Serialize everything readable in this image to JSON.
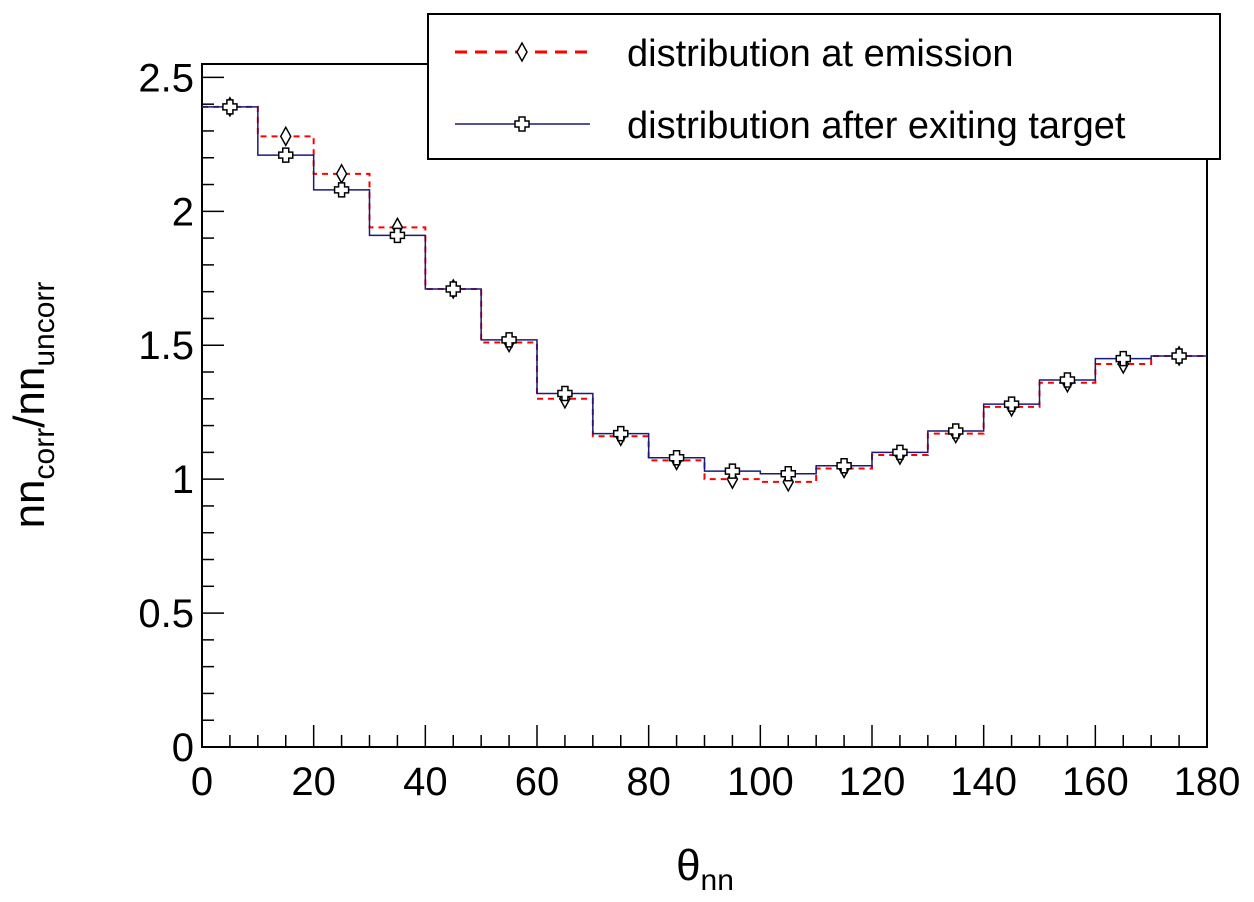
{
  "chart_data": {
    "type": "line",
    "title": "",
    "xlabel": {
      "main": "θ",
      "sub": "nn"
    },
    "ylabel": {
      "p1": "nn",
      "s1": "corr",
      "p2": "/nn",
      "s2": "uncorr"
    },
    "xlim": [
      0,
      180
    ],
    "ylim": [
      0,
      2.55
    ],
    "x_ticks": [
      0,
      20,
      40,
      60,
      80,
      100,
      120,
      140,
      160,
      180
    ],
    "y_ticks": [
      0,
      0.5,
      1,
      1.5,
      2,
      2.5
    ],
    "y_tick_labels": [
      "0",
      "0.5",
      "1",
      "1.5",
      "2",
      "2.5"
    ],
    "x_tick_labels": [
      "0",
      "20",
      "40",
      "60",
      "80",
      "100",
      "120",
      "140",
      "160",
      "180"
    ],
    "bin_edges": [
      0,
      10,
      20,
      30,
      40,
      50,
      60,
      70,
      80,
      90,
      100,
      110,
      120,
      130,
      140,
      150,
      160,
      170,
      180
    ],
    "bin_centers": [
      5,
      15,
      25,
      35,
      45,
      55,
      65,
      75,
      85,
      95,
      105,
      115,
      125,
      135,
      145,
      155,
      165,
      175
    ],
    "grid": false,
    "legend_position": "top-right",
    "series": [
      {
        "name": "distribution at emission",
        "style": "dashed-step",
        "marker": "open-diamond",
        "color": "#ff0000",
        "values": [
          2.39,
          2.28,
          2.14,
          1.94,
          1.71,
          1.51,
          1.3,
          1.16,
          1.07,
          1.0,
          0.99,
          1.04,
          1.09,
          1.17,
          1.27,
          1.36,
          1.43,
          1.46
        ]
      },
      {
        "name": "distribution after exiting target",
        "style": "solid-step",
        "marker": "open-cross",
        "color": "#1a1a7a",
        "values": [
          2.39,
          2.21,
          2.08,
          1.91,
          1.71,
          1.52,
          1.32,
          1.17,
          1.08,
          1.03,
          1.02,
          1.05,
          1.1,
          1.18,
          1.28,
          1.37,
          1.45,
          1.46
        ]
      }
    ]
  }
}
